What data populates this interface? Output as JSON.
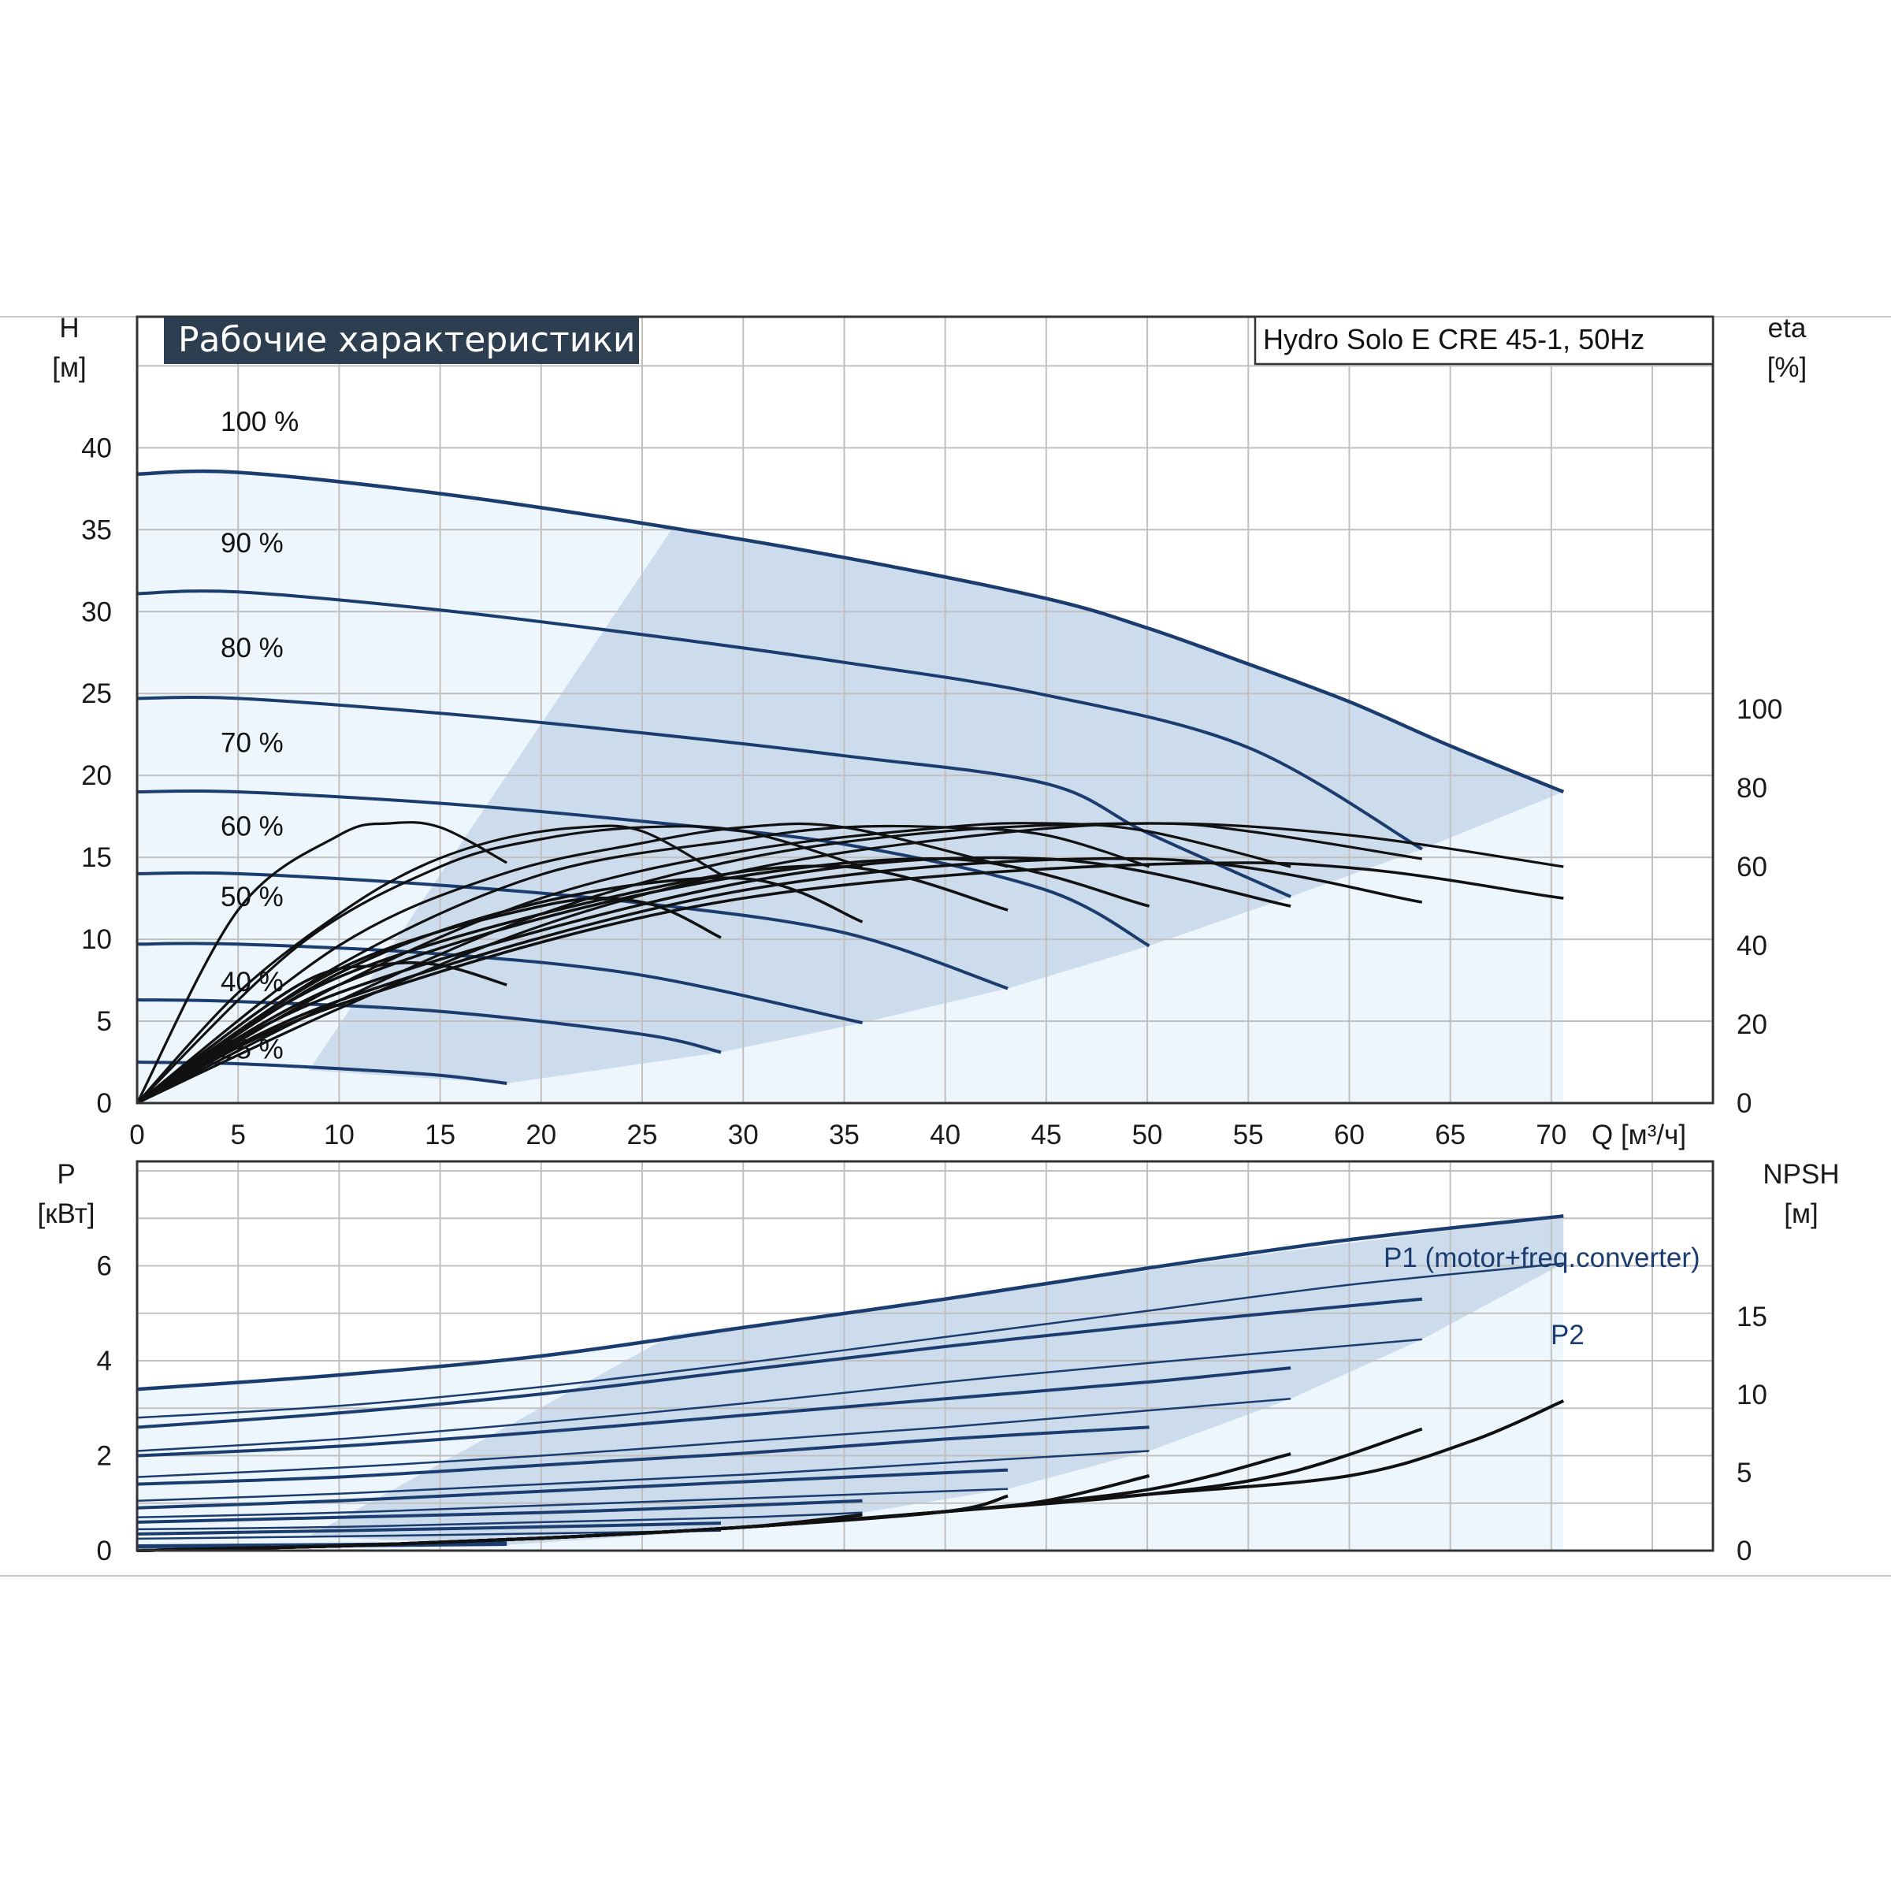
{
  "colors": {
    "pump_curve": "#1a3c6e",
    "efficiency_curve": "#111111",
    "band_fill": "#cddcec",
    "band_fill_light": "#eef6fd",
    "title_bg": "#2c3e50",
    "grid": "#c0c0c0"
  },
  "chart_data": [
    {
      "type": "line",
      "title": "Рабочие характеристики",
      "model": "Hydro Solo E CRE 45-1, 50Hz",
      "xlabel": "Q [м³/ч]",
      "ylabel_top": "H",
      "ylabel_bottom": "[м]",
      "y2label_top": "eta",
      "y2label_bottom": "[%]",
      "xlim": [
        0,
        78
      ],
      "ylim": [
        0,
        48
      ],
      "y2lim": [
        0,
        100
      ],
      "x_ticks": [
        "0",
        "5",
        "10",
        "15",
        "20",
        "25",
        "30",
        "35",
        "40",
        "45",
        "50",
        "55",
        "60",
        "65",
        "70"
      ],
      "y_ticks": [
        "0",
        "5",
        "10",
        "15",
        "20",
        "25",
        "30",
        "35",
        "40"
      ],
      "y2_ticks": [
        "0",
        "20",
        "40",
        "60",
        "80",
        "100"
      ],
      "grid": true,
      "speed_curves": [
        {
          "label": "100 %",
          "x": [
            0,
            5,
            15,
            25,
            35,
            45,
            50,
            55,
            60,
            65,
            70.6
          ],
          "y": [
            38.4,
            38.5,
            37.2,
            35.4,
            33.3,
            30.8,
            29.0,
            26.8,
            24.5,
            21.8,
            19.0
          ]
        },
        {
          "label": "90 %",
          "x": [
            0,
            5,
            15,
            25,
            35,
            45,
            55,
            63.6
          ],
          "y": [
            31.1,
            31.2,
            30.1,
            28.6,
            26.9,
            24.9,
            21.7,
            15.5
          ]
        },
        {
          "label": "80 %",
          "x": [
            0,
            5,
            15,
            25,
            35,
            45,
            50,
            57.1
          ],
          "y": [
            24.7,
            24.7,
            23.8,
            22.6,
            21.2,
            19.5,
            16.5,
            12.6
          ]
        },
        {
          "label": "70 %",
          "x": [
            0,
            5,
            15,
            25,
            35,
            45,
            50.1
          ],
          "y": [
            19.0,
            19.0,
            18.3,
            17.2,
            15.8,
            13.0,
            9.6
          ]
        },
        {
          "label": "60 %",
          "x": [
            0,
            5,
            15,
            25,
            35,
            43.1
          ],
          "y": [
            14.0,
            14.0,
            13.3,
            12.2,
            10.4,
            7.0
          ]
        },
        {
          "label": "50 %",
          "x": [
            0,
            5,
            15,
            25,
            35.9
          ],
          "y": [
            9.7,
            9.7,
            9.1,
            7.8,
            4.9
          ]
        },
        {
          "label": "40 %",
          "x": [
            0,
            5,
            15,
            25,
            28.9
          ],
          "y": [
            6.3,
            6.2,
            5.6,
            4.2,
            3.1
          ]
        },
        {
          "label": "25 %",
          "x": [
            0,
            5,
            10,
            15,
            18.3
          ],
          "y": [
            2.5,
            2.4,
            2.1,
            1.7,
            1.2
          ]
        }
      ],
      "efficiency_curves": [
        {
          "x": [
            0,
            5,
            10,
            12.5,
            15,
            18.3
          ],
          "y": [
            0,
            49,
            68,
            71,
            70,
            61
          ]
        },
        {
          "x": [
            0,
            5,
            10,
            14,
            18,
            22,
            25,
            28.9
          ],
          "y": [
            0,
            28,
            48,
            60,
            67,
            70,
            69,
            58
          ]
        },
        {
          "x": [
            0,
            8,
            15,
            20,
            25,
            30,
            35.9
          ],
          "y": [
            0,
            40,
            60,
            67,
            70,
            69,
            60
          ]
        },
        {
          "x": [
            0,
            10,
            18,
            25,
            30,
            35,
            43.1
          ],
          "y": [
            0,
            40,
            58,
            66,
            70,
            70,
            60
          ]
        },
        {
          "x": [
            0,
            10,
            20,
            30,
            35,
            40,
            45,
            50.1
          ],
          "y": [
            0,
            35,
            58,
            67,
            70,
            70,
            68,
            60
          ]
        },
        {
          "x": [
            0,
            10,
            20,
            30,
            40,
            45,
            50,
            57.1
          ],
          "y": [
            0,
            30,
            52,
            64,
            70,
            71,
            69,
            60
          ]
        },
        {
          "x": [
            0,
            10,
            20,
            30,
            40,
            50,
            55,
            63.6
          ],
          "y": [
            0,
            26,
            48,
            62,
            69,
            71,
            69,
            62
          ]
        },
        {
          "x": [
            0,
            10,
            20,
            30,
            40,
            50,
            60,
            70.6
          ],
          "y": [
            0,
            24,
            45,
            59,
            67,
            71,
            68,
            60
          ]
        }
      ]
    },
    {
      "type": "line",
      "ylabel_top": "P",
      "ylabel_bottom": "[кВт]",
      "y2label_top": "NPSH",
      "y2label_bottom": "[м]",
      "xlim": [
        0,
        78
      ],
      "ylim": [
        0,
        8.2
      ],
      "y2lim": [
        0,
        20.5
      ],
      "y_ticks": [
        "0",
        "2",
        "4",
        "6"
      ],
      "y2_ticks": [
        "0",
        "5",
        "10",
        "15"
      ],
      "grid": true,
      "series_labels": [
        "P1 (motor+freq.converter)",
        "P2"
      ],
      "p1_curves": [
        {
          "x": [
            0,
            10,
            20,
            30,
            40,
            50,
            60,
            70.6
          ],
          "y": [
            3.4,
            3.7,
            4.1,
            4.7,
            5.3,
            5.95,
            6.55,
            7.05
          ]
        },
        {
          "x": [
            0,
            10,
            20,
            30,
            40,
            50,
            63.6
          ],
          "y": [
            2.6,
            2.9,
            3.3,
            3.8,
            4.3,
            4.75,
            5.3
          ]
        },
        {
          "x": [
            0,
            10,
            20,
            30,
            40,
            50,
            57.1
          ],
          "y": [
            2.0,
            2.2,
            2.5,
            2.85,
            3.2,
            3.55,
            3.85
          ]
        },
        {
          "x": [
            0,
            10,
            20,
            30,
            40,
            50.1
          ],
          "y": [
            1.4,
            1.55,
            1.8,
            2.05,
            2.35,
            2.6
          ]
        },
        {
          "x": [
            0,
            10,
            20,
            30,
            43.1
          ],
          "y": [
            0.9,
            1.05,
            1.25,
            1.45,
            1.7
          ]
        },
        {
          "x": [
            0,
            10,
            20,
            30,
            35.9
          ],
          "y": [
            0.6,
            0.7,
            0.8,
            0.95,
            1.05
          ]
        },
        {
          "x": [
            0,
            10,
            20,
            28.9
          ],
          "y": [
            0.35,
            0.42,
            0.5,
            0.58
          ]
        },
        {
          "x": [
            0,
            10,
            18.3
          ],
          "y": [
            0.1,
            0.13,
            0.17
          ]
        }
      ],
      "p2_curves": [
        {
          "x": [
            0,
            10,
            20,
            30,
            40,
            50,
            60,
            70.6
          ],
          "y": [
            2.8,
            3.05,
            3.45,
            3.95,
            4.5,
            5.05,
            5.6,
            6.05
          ]
        },
        {
          "x": [
            0,
            10,
            20,
            30,
            40,
            50,
            63.6
          ],
          "y": [
            2.1,
            2.35,
            2.7,
            3.1,
            3.55,
            3.95,
            4.45
          ]
        },
        {
          "x": [
            0,
            10,
            20,
            30,
            40,
            50,
            57.1
          ],
          "y": [
            1.55,
            1.75,
            2.0,
            2.3,
            2.6,
            2.95,
            3.2
          ]
        },
        {
          "x": [
            0,
            10,
            20,
            30,
            40,
            50.1
          ],
          "y": [
            1.05,
            1.2,
            1.4,
            1.6,
            1.85,
            2.1
          ]
        },
        {
          "x": [
            0,
            10,
            20,
            30,
            43.1
          ],
          "y": [
            0.7,
            0.8,
            0.95,
            1.1,
            1.3
          ]
        },
        {
          "x": [
            0,
            10,
            20,
            30,
            35.9
          ],
          "y": [
            0.45,
            0.5,
            0.6,
            0.7,
            0.8
          ]
        },
        {
          "x": [
            0,
            10,
            20,
            28.9
          ],
          "y": [
            0.25,
            0.3,
            0.36,
            0.42
          ]
        },
        {
          "x": [
            0,
            10,
            18.3
          ],
          "y": [
            0.07,
            0.09,
            0.12
          ]
        }
      ],
      "npsh_curves": [
        {
          "x": [
            0,
            10,
            20,
            30,
            40,
            50,
            60,
            66,
            70.6
          ],
          "y": [
            0,
            0.3,
            0.8,
            1.5,
            2.5,
            3.6,
            4.8,
            7.0,
            9.6
          ]
        },
        {
          "x": [
            0,
            10,
            20,
            30,
            40,
            50,
            57,
            63.6
          ],
          "y": [
            0,
            0.3,
            0.8,
            1.5,
            2.5,
            3.6,
            5.0,
            7.8
          ]
        },
        {
          "x": [
            0,
            10,
            20,
            30,
            40,
            50,
            57.1
          ],
          "y": [
            0,
            0.3,
            0.8,
            1.5,
            2.5,
            3.9,
            6.2
          ]
        },
        {
          "x": [
            0,
            10,
            20,
            30,
            40,
            45,
            50.1
          ],
          "y": [
            0,
            0.3,
            0.8,
            1.5,
            2.5,
            3.2,
            4.8
          ]
        },
        {
          "x": [
            0,
            10,
            20,
            30,
            40,
            43.1
          ],
          "y": [
            0,
            0.3,
            0.8,
            1.5,
            2.5,
            3.5
          ]
        },
        {
          "x": [
            0,
            10,
            20,
            30,
            35.9
          ],
          "y": [
            0,
            0.3,
            0.8,
            1.5,
            2.3
          ]
        }
      ]
    }
  ]
}
